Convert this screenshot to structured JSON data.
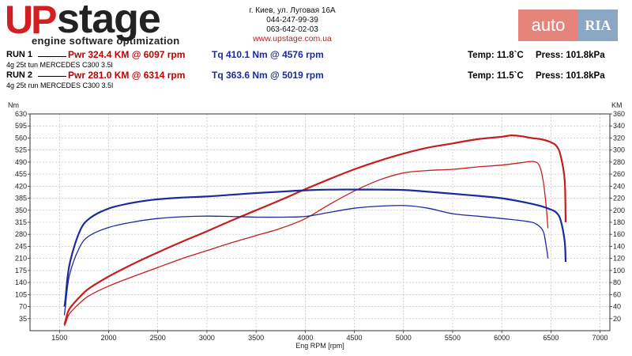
{
  "header": {
    "logo_up": "UP",
    "logo_stage": "stage",
    "tagline": "engine software optimization",
    "address": "г. Киев, ул. Луговая 16А",
    "phone1": "044-247-99-39",
    "phone2": "063-642-02-03",
    "website": "www.upstage.com.ua"
  },
  "watermark": {
    "auto": "auto",
    "ria": "RIA",
    "ria_small": ".com"
  },
  "runs": [
    {
      "label": "RUN 1",
      "desc": "4g 25t tun MERCEDES C300 3.5l",
      "power": "Pwr  324.4 KM @ 6097 rpm",
      "torque": "Tq 410.1 Nm @ 4576 rpm",
      "temp": "Temp: 11.8`C",
      "press": "Press: 101.8kPa"
    },
    {
      "label": "RUN 2",
      "desc": "4g 25t run MERCEDES C300 3.5l",
      "power": "Pwr  281.0 KM @ 6314 rpm",
      "torque": "Tq 363.6 Nm @ 5019 rpm",
      "temp": "Temp: 11.5`C",
      "press": "Press: 101.8kPa"
    }
  ],
  "colors": {
    "power": "#c41f1f",
    "torque": "#1c2a9c",
    "grid": "#b8b8b8"
  },
  "chart_data": {
    "type": "line",
    "title": "",
    "xlabel": "Eng RPM [rpm]",
    "ylabel_left": "Nm",
    "ylabel_right": "KM",
    "xlim": [
      1200,
      7100
    ],
    "ylim_left": [
      0,
      630
    ],
    "ylim_right": [
      0,
      360
    ],
    "x_ticks": [
      1500,
      2000,
      2500,
      3000,
      3500,
      4000,
      4500,
      5000,
      5500,
      6000,
      6500,
      7000
    ],
    "y_ticks_left": [
      35,
      70,
      105,
      140,
      175,
      210,
      245,
      280,
      315,
      350,
      385,
      420,
      455,
      490,
      525,
      560,
      595,
      630
    ],
    "y_ticks_right": [
      20,
      40,
      60,
      80,
      100,
      120,
      140,
      160,
      180,
      200,
      220,
      240,
      260,
      280,
      300,
      320,
      340,
      360
    ],
    "grid": true,
    "series": [
      {
        "name": "Run 1 Power",
        "axis": "right",
        "color": "#c41f1f",
        "width": 2.2,
        "x": [
          1550,
          1570,
          1600,
          1700,
          1800,
          2000,
          2250,
          2500,
          2750,
          3000,
          3250,
          3500,
          3750,
          4000,
          4250,
          4500,
          4750,
          5000,
          5250,
          5500,
          5750,
          6000,
          6097,
          6200,
          6300,
          6400,
          6500,
          6560,
          6600,
          6640,
          6650
        ],
        "y": [
          10,
          22,
          36,
          55,
          70,
          90,
          111,
          130,
          148,
          165,
          183,
          200,
          217,
          235,
          252,
          268,
          282,
          294,
          304,
          311,
          318,
          322,
          324.4,
          323,
          320,
          318,
          313,
          306,
          290,
          250,
          180
        ]
      },
      {
        "name": "Run 2 Power",
        "axis": "right",
        "color": "#c41f1f",
        "width": 1.3,
        "x": [
          1550,
          1570,
          1600,
          1700,
          1800,
          2000,
          2250,
          2500,
          2750,
          3000,
          3250,
          3500,
          3750,
          4000,
          4250,
          4500,
          4750,
          5000,
          5250,
          5500,
          5750,
          6000,
          6200,
          6314,
          6380,
          6420,
          6450,
          6470
        ],
        "y": [
          8,
          16,
          28,
          45,
          58,
          74,
          90,
          105,
          120,
          133,
          146,
          158,
          170,
          186,
          210,
          232,
          250,
          262,
          266,
          268,
          272,
          275,
          279,
          281,
          275,
          250,
          210,
          170
        ]
      },
      {
        "name": "Run 1 Torque",
        "axis": "left",
        "color": "#1c2a9c",
        "width": 2.2,
        "x": [
          1550,
          1560,
          1600,
          1700,
          1800,
          2000,
          2250,
          2500,
          2750,
          3000,
          3250,
          3500,
          3750,
          4000,
          4250,
          4576,
          4750,
          5000,
          5250,
          5500,
          5750,
          6000,
          6250,
          6400,
          6500,
          6560,
          6600,
          6640,
          6650
        ],
        "y": [
          70,
          90,
          190,
          285,
          325,
          355,
          372,
          382,
          387,
          390,
          395,
          400,
          404,
          408,
          410,
          410.1,
          410,
          409,
          404,
          398,
          392,
          385,
          372,
          362,
          352,
          342,
          320,
          260,
          200
        ]
      },
      {
        "name": "Run 2 Torque",
        "axis": "left",
        "color": "#1c2a9c",
        "width": 1.3,
        "x": [
          1550,
          1560,
          1600,
          1700,
          1800,
          2000,
          2250,
          2500,
          2750,
          3000,
          3250,
          3500,
          3750,
          4000,
          4250,
          4500,
          4750,
          5019,
          5250,
          5500,
          5750,
          6000,
          6250,
          6350,
          6420,
          6450,
          6470
        ],
        "y": [
          45,
          70,
          160,
          240,
          275,
          300,
          316,
          326,
          331,
          333,
          332,
          330,
          330,
          332,
          344,
          356,
          362,
          363.6,
          356,
          340,
          333,
          326,
          318,
          310,
          290,
          250,
          210
        ]
      }
    ]
  }
}
